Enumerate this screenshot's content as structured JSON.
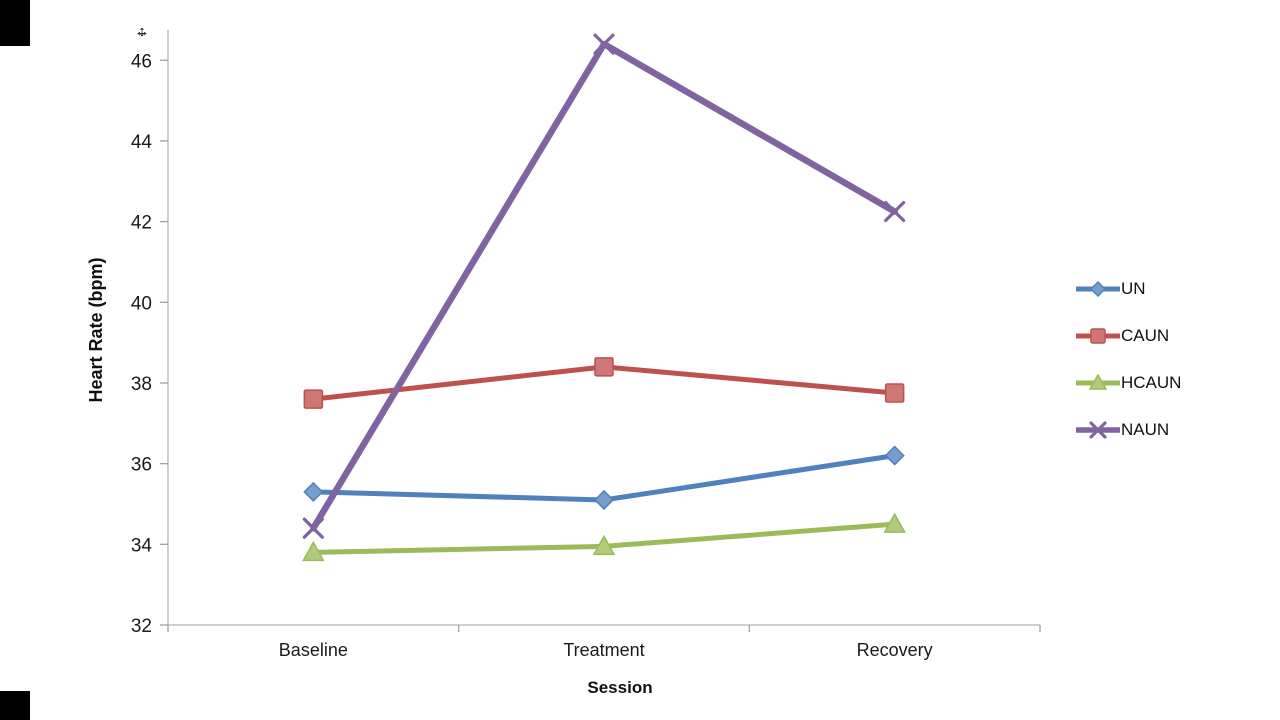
{
  "icons": {
    "move_h": "↔",
    "move_v": "↕"
  },
  "chart_data": {
    "type": "line",
    "title": "",
    "xlabel": "Session",
    "ylabel": "Heart Rate (bpm)",
    "categories": [
      "Baseline",
      "Treatment",
      "Recovery"
    ],
    "series": [
      {
        "name": "UN",
        "values": [
          35.3,
          35.1,
          36.2
        ],
        "color": "#4f81bd",
        "marker": "diamond",
        "line_width": 5
      },
      {
        "name": "CAUN",
        "values": [
          37.6,
          38.4,
          37.75
        ],
        "color": "#c0504d",
        "marker": "square",
        "line_width": 5
      },
      {
        "name": "HCAUN",
        "values": [
          33.8,
          33.95,
          34.5
        ],
        "color": "#9bbb59",
        "marker": "triangle",
        "line_width": 5
      },
      {
        "name": "NAUN",
        "values": [
          34.4,
          46.4,
          42.25
        ],
        "color": "#8064a2",
        "marker": "x",
        "line_width": 6.5
      }
    ],
    "ylim": [
      32,
      46.75
    ],
    "yticks": [
      32,
      34,
      36,
      38,
      40,
      42,
      44,
      46
    ],
    "grid": false,
    "legend_position": "right"
  }
}
